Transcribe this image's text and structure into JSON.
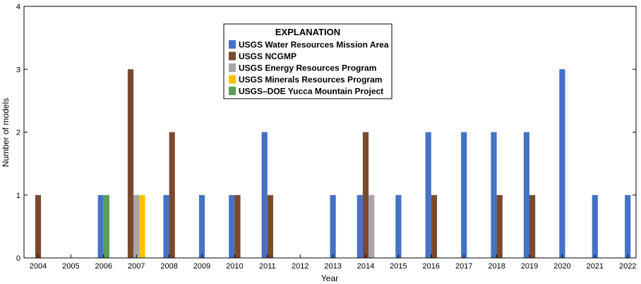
{
  "chart_data": {
    "type": "bar",
    "xlabel": "Year",
    "ylabel": "Number of models",
    "ylim": [
      0,
      4
    ],
    "yticks": [
      "0",
      "1",
      "2",
      "3",
      "4"
    ],
    "grid": false,
    "legend_title": "EXPLANATION",
    "legend_position": "top-center",
    "categories": [
      "2004",
      "2005",
      "2006",
      "2007",
      "2008",
      "2009",
      "2010",
      "2011",
      "2012",
      "2013",
      "2014",
      "2015",
      "2016",
      "2017",
      "2018",
      "2019",
      "2020",
      "2021",
      "2022"
    ],
    "series": [
      {
        "name": "USGS Water Resources Mission Area",
        "color": "#4472c4",
        "values": [
          0,
          0,
          1,
          0,
          1,
          1,
          1,
          2,
          0,
          1,
          1,
          1,
          2,
          2,
          2,
          2,
          3,
          1,
          1
        ]
      },
      {
        "name": "USGS NCGMP",
        "color": "#7a4a2e",
        "values": [
          1,
          0,
          0,
          3,
          2,
          0,
          1,
          1,
          0,
          0,
          2,
          0,
          1,
          0,
          1,
          1,
          0,
          0,
          0
        ]
      },
      {
        "name": "USGS Energy Resources Program",
        "color": "#a6a6a6",
        "values": [
          0,
          0,
          0,
          1,
          0,
          0,
          0,
          0,
          0,
          0,
          1,
          0,
          0,
          0,
          0,
          0,
          0,
          0,
          0
        ]
      },
      {
        "name": "USGS Minerals Resources Program",
        "color": "#ffc000",
        "values": [
          0,
          0,
          0,
          1,
          0,
          0,
          0,
          0,
          0,
          0,
          0,
          0,
          0,
          0,
          0,
          0,
          0,
          0,
          0
        ]
      },
      {
        "name": "USGS–DOE Yucca Mountain Project",
        "color": "#5b9e5b",
        "values": [
          0,
          0,
          1,
          0,
          0,
          0,
          0,
          0,
          0,
          0,
          0,
          0,
          0,
          0,
          0,
          0,
          0,
          0,
          0
        ]
      }
    ]
  }
}
